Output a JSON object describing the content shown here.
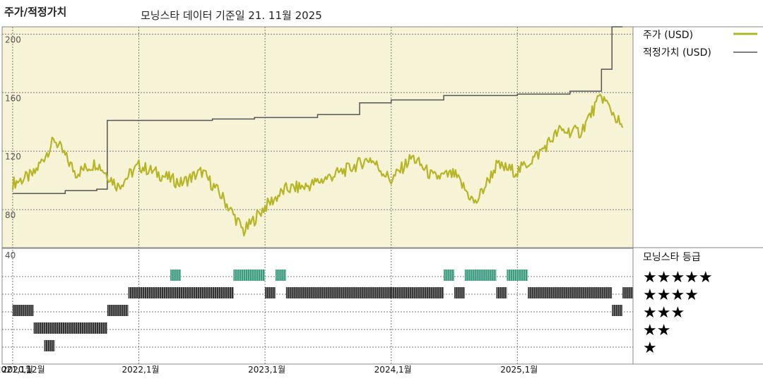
{
  "header": {
    "title": "주가/적정가치",
    "subtitle": "모닝스타 데이터 기준일 21. 11월 2025"
  },
  "legend": {
    "price_label": "주가 (USD)",
    "fair_value_label": "적정가치 (USD)",
    "rating_title": "모닝스타 등급",
    "price_color": "#b5b526",
    "fair_value_color": "#555555"
  },
  "colors": {
    "plot_background": "#f7f3d6",
    "rating_green": "#3a9a7e",
    "rating_dark": "#333333"
  },
  "chart_data": [
    {
      "type": "line",
      "series": [
        {
          "name": "주가 (USD)",
          "x": [
            "2021-01",
            "2021-03",
            "2021-05",
            "2021-07",
            "2021-09",
            "2021-11",
            "2022-01",
            "2022-03",
            "2022-05",
            "2022-07",
            "2022-09",
            "2022-11",
            "2023-01",
            "2023-03",
            "2023-05",
            "2023-07",
            "2023-09",
            "2023-11",
            "2024-01",
            "2024-03",
            "2024-05",
            "2024-07",
            "2024-09",
            "2024-11",
            "2025-01",
            "2025-03",
            "2025-05",
            "2025-07",
            "2025-09",
            "2025-11"
          ],
          "values": [
            98,
            104,
            128,
            105,
            112,
            96,
            110,
            104,
            98,
            106,
            88,
            65,
            82,
            94,
            96,
            102,
            108,
            115,
            100,
            116,
            102,
            104,
            84,
            110,
            106,
            118,
            134,
            133,
            158,
            136
          ]
        },
        {
          "name": "적정가치 (USD)",
          "x": [
            "2021-01",
            "2021-06",
            "2021-09",
            "2021-10",
            "2022-08",
            "2022-12",
            "2023-06",
            "2023-10",
            "2024-01",
            "2024-06",
            "2025-01",
            "2025-06",
            "2025-09",
            "2025-10",
            "2025-11"
          ],
          "values": [
            91,
            93,
            94,
            141,
            142,
            143,
            145,
            153,
            155,
            158,
            159,
            161,
            176,
            205,
            205
          ]
        }
      ],
      "yticks": [
        80,
        120,
        160,
        200
      ],
      "ylim": [
        54,
        205
      ]
    },
    {
      "type": "rating_bars",
      "title": "모닝스타 등급",
      "levels": [
        "★★★★★",
        "★★★★",
        "★★★",
        "★★",
        "★"
      ],
      "ytick": 40,
      "x_tick_labels": [
        "2020,12월",
        "2021,1월",
        "2022,1월",
        "2023,1월",
        "2024,1월",
        "2025,1월"
      ],
      "segments": [
        {
          "stars": 3,
          "start": "2021-01",
          "end": "2021-03"
        },
        {
          "stars": 2,
          "start": "2021-03",
          "end": "2021-04"
        },
        {
          "stars": 2,
          "start": "2021-04",
          "end": "2021-10"
        },
        {
          "stars": 1,
          "start": "2021-04",
          "end": "2021-05"
        },
        {
          "stars": 3,
          "start": "2021-10",
          "end": "2021-12"
        },
        {
          "stars": 4,
          "start": "2021-12",
          "end": "2022-10"
        },
        {
          "stars": 5,
          "start": "2022-04",
          "end": "2022-05"
        },
        {
          "stars": 5,
          "start": "2022-10",
          "end": "2023-01"
        },
        {
          "stars": 4,
          "start": "2023-01",
          "end": "2023-02"
        },
        {
          "stars": 5,
          "start": "2023-02",
          "end": "2023-03"
        },
        {
          "stars": 4,
          "start": "2023-03",
          "end": "2024-01"
        },
        {
          "stars": 4,
          "start": "2024-01",
          "end": "2024-06"
        },
        {
          "stars": 5,
          "start": "2024-06",
          "end": "2024-07"
        },
        {
          "stars": 4,
          "start": "2024-07",
          "end": "2024-08"
        },
        {
          "stars": 5,
          "start": "2024-08",
          "end": "2024-11"
        },
        {
          "stars": 4,
          "start": "2024-11",
          "end": "2024-12"
        },
        {
          "stars": 5,
          "start": "2024-12",
          "end": "2025-02"
        },
        {
          "stars": 4,
          "start": "2025-02",
          "end": "2025-10"
        },
        {
          "stars": 3,
          "start": "2025-10",
          "end": "2025-11"
        },
        {
          "stars": 4,
          "start": "2025-11",
          "end": "2025-12"
        }
      ]
    }
  ]
}
